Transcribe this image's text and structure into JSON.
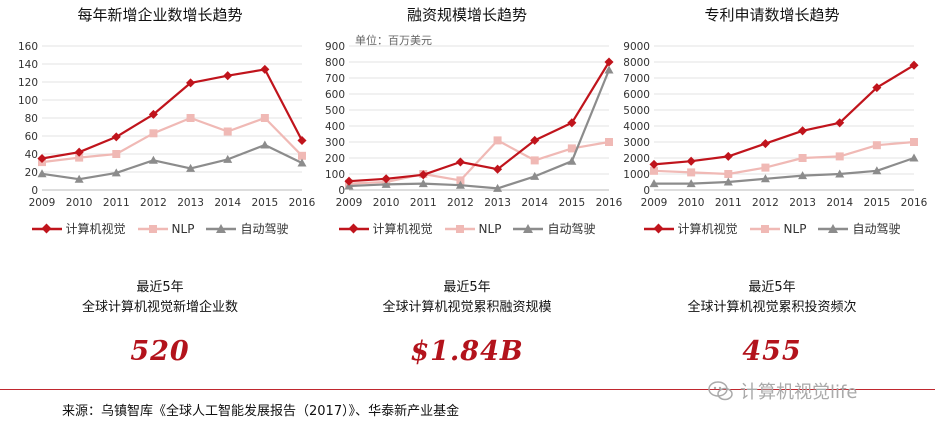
{
  "legend": {
    "cv": {
      "label": "计算机视觉",
      "color": "#c0141c"
    },
    "nlp": {
      "label": "NLP",
      "color": "#f0b9b5"
    },
    "ad": {
      "label": "自动驾驶",
      "color": "#8c8c8c"
    }
  },
  "chart_data": [
    {
      "type": "line",
      "title": "每年新增企业数增长趋势",
      "categories": [
        "2009",
        "2010",
        "2011",
        "2012",
        "2013",
        "2014",
        "2015",
        "2016"
      ],
      "ylim": [
        0,
        160
      ],
      "yticks": [
        0,
        20,
        40,
        60,
        80,
        100,
        120,
        140,
        160
      ],
      "unit": "",
      "series": [
        {
          "key": "cv",
          "name": "计算机视觉",
          "values": [
            35,
            42,
            59,
            84,
            119,
            127,
            134,
            55
          ]
        },
        {
          "key": "nlp",
          "name": "NLP",
          "values": [
            31,
            36,
            40,
            63,
            80,
            65,
            80,
            38
          ]
        },
        {
          "key": "ad",
          "name": "自动驾驶",
          "values": [
            18,
            12,
            19,
            33,
            24,
            34,
            50,
            30
          ]
        }
      ]
    },
    {
      "type": "line",
      "title": "融资规模增长趋势",
      "categories": [
        "2009",
        "2010",
        "2011",
        "2012",
        "2013",
        "2014",
        "2015",
        "2016"
      ],
      "ylim": [
        0,
        900
      ],
      "yticks": [
        0,
        100,
        200,
        300,
        400,
        500,
        600,
        700,
        800,
        900
      ],
      "unit": "单位：百万美元",
      "series": [
        {
          "key": "cv",
          "name": "计算机视觉",
          "values": [
            55,
            70,
            95,
            175,
            130,
            310,
            420,
            800
          ]
        },
        {
          "key": "nlp",
          "name": "NLP",
          "values": [
            40,
            50,
            100,
            60,
            310,
            185,
            260,
            300
          ]
        },
        {
          "key": "ad",
          "name": "自动驾驶",
          "values": [
            25,
            35,
            40,
            30,
            10,
            85,
            180,
            750
          ]
        }
      ]
    },
    {
      "type": "line",
      "title": "专利申请数增长趋势",
      "categories": [
        "2009",
        "2010",
        "2011",
        "2012",
        "2013",
        "2014",
        "2015",
        "2016"
      ],
      "ylim": [
        0,
        9000
      ],
      "yticks": [
        0,
        1000,
        2000,
        3000,
        4000,
        5000,
        6000,
        7000,
        8000,
        9000
      ],
      "unit": "",
      "series": [
        {
          "key": "cv",
          "name": "计算机视觉",
          "values": [
            1600,
            1800,
            2100,
            2900,
            3700,
            4200,
            6400,
            7800
          ]
        },
        {
          "key": "nlp",
          "name": "NLP",
          "values": [
            1200,
            1100,
            1000,
            1400,
            2000,
            2100,
            2800,
            3000
          ]
        },
        {
          "key": "ad",
          "name": "自动驾驶",
          "values": [
            400,
            400,
            500,
            700,
            900,
            1000,
            1200,
            2000
          ]
        }
      ]
    }
  ],
  "stats": [
    {
      "line1": "最近5年",
      "line2": "全球计算机视觉新增企业数",
      "value": "520"
    },
    {
      "line1": "最近5年",
      "line2": "全球计算机视觉累积融资规模",
      "value": "$1.84B"
    },
    {
      "line1": "最近5年",
      "line2": "全球计算机视觉累积投资频次",
      "value": "455"
    }
  ],
  "source": "来源：乌镇智库《全球人工智能发展报告（2017）》、华泰新产业基金",
  "watermark": "计算机视觉life"
}
